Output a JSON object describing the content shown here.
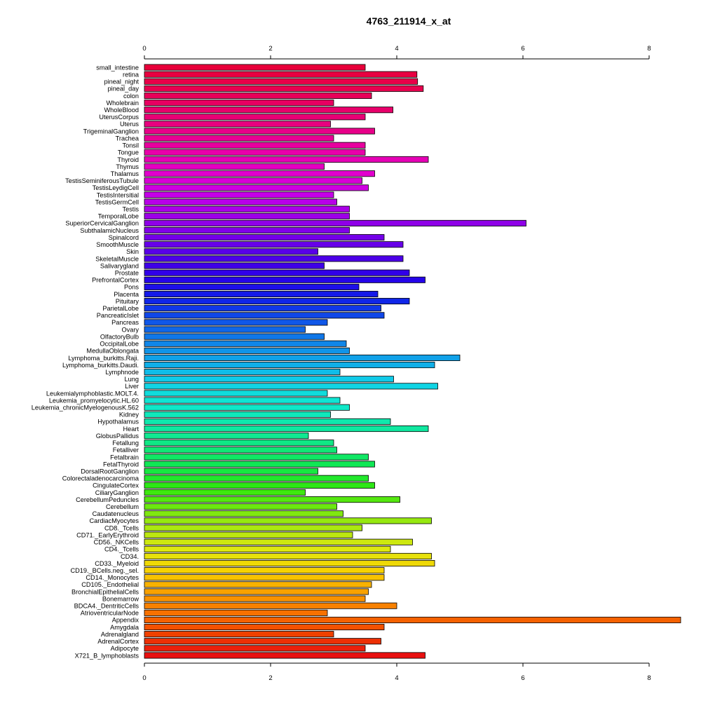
{
  "chart_data": {
    "type": "bar",
    "orientation": "horizontal",
    "title": "4763_211914_x_at",
    "xlabel": "",
    "ylabel": "",
    "xlim": [
      0,
      8
    ],
    "x_ticks": [
      0,
      2,
      4,
      6,
      8
    ],
    "grid": false,
    "legend": "none",
    "colors": [
      "#e8003a",
      "#e80050",
      "#e8006a",
      "#e80088",
      "#e800a8",
      "#e400cc",
      "#c800e8",
      "#a000e8",
      "#7800e8",
      "#5000e8",
      "#2800e8",
      "#1020e8",
      "#1050e8",
      "#1080e8",
      "#10a8e8",
      "#10d0e8",
      "#10e8d0",
      "#10e8a8",
      "#10e880",
      "#10e850",
      "#30e810",
      "#70e810",
      "#b0e810",
      "#e0e810",
      "#f8d000",
      "#f8a000",
      "#f87000",
      "#f04000",
      "#e81010"
    ],
    "categories": [
      "small_intestine",
      "retina",
      "pineal_night",
      "pineal_day",
      "colon",
      "Wholebrain",
      "WholeBlood",
      "UterusCorpus",
      "Uterus",
      "TrigeminalGanglion",
      "Trachea",
      "Tonsil",
      "Tongue",
      "Thyroid",
      "Thymus",
      "Thalamus",
      "TestisSeminiferousTubule",
      "TestisLeydigCell",
      "TestisIntersitial",
      "TestisGermCell",
      "Testis",
      "TemporalLobe",
      "SuperiorCervicalGanglion",
      "SubthalamicNucleus",
      "Spinalcord",
      "SmoothMuscle",
      "Skin",
      "SkeletalMuscle",
      "Salivarygland",
      "Prostate",
      "PrefrontalCortex",
      "Pons",
      "Placenta",
      "Pituitary",
      "ParietalLobe",
      "PancreaticIslet",
      "Pancreas",
      "Ovary",
      "OlfactoryBulb",
      "OccipitalLobe",
      "MedullaOblongata",
      "Lymphoma_burkitts.Raji.",
      "Lymphoma_burkitts.Daudi.",
      "Lymphnode",
      "Lung",
      "Liver",
      "Leukemialymphoblastic.MOLT.4.",
      "Leukemia_promyelocytic.HL.60",
      "Leukemia_chronicMyelogenousK.562",
      "Kidney",
      "Hypothalamus",
      "Heart",
      "GlobusPallidus",
      "Fetallung",
      "Fetalliver",
      "Fetalbrain",
      "FetalThyroid",
      "DorsalRootGanglion",
      "Colorectaladenocarcinoma",
      "CingulateCortex",
      "CiliaryGanglion",
      "CerebellumPeduncles",
      "Cerebellum",
      "Caudatenucleus",
      "CardiacMyocytes",
      "CD8._Tcells",
      "CD71._EarlyErythroid",
      "CD56._NKCells",
      "CD4._Tcells",
      "CD34.",
      "CD33._Myeloid",
      "CD19._BCells.neg._sel.",
      "CD14._Monocytes",
      "CD105._Endothelial",
      "BronchialEpithelialCells",
      "Bonemarrow",
      "BDCA4._DentriticCells",
      "AtrioventricularNode",
      "Appendix",
      "Amygdala",
      "Adrenalgland",
      "AdrenalCortex",
      "Adipocyte",
      "X721_B_lymphoblasts"
    ],
    "values": [
      3.5,
      4.32,
      4.33,
      4.42,
      3.6,
      3.0,
      3.94,
      3.5,
      2.95,
      3.65,
      3.0,
      3.5,
      3.5,
      4.5,
      2.85,
      3.65,
      3.45,
      3.55,
      3.0,
      3.05,
      3.25,
      3.25,
      6.05,
      3.25,
      3.8,
      4.1,
      2.75,
      4.1,
      2.85,
      4.2,
      4.45,
      3.4,
      3.7,
      4.2,
      3.75,
      3.8,
      2.9,
      2.55,
      2.85,
      3.2,
      3.25,
      5.0,
      4.6,
      3.1,
      3.95,
      4.65,
      2.9,
      3.1,
      3.25,
      2.95,
      3.9,
      4.5,
      2.6,
      3.0,
      3.05,
      3.55,
      3.65,
      2.75,
      3.55,
      3.65,
      2.55,
      4.05,
      3.05,
      3.15,
      4.55,
      3.45,
      3.3,
      4.25,
      3.9,
      4.55,
      4.6,
      3.8,
      3.8,
      3.6,
      3.55,
      3.5,
      4.0,
      2.9,
      8.5,
      3.8,
      3.0,
      3.75,
      3.5,
      4.45
    ]
  }
}
